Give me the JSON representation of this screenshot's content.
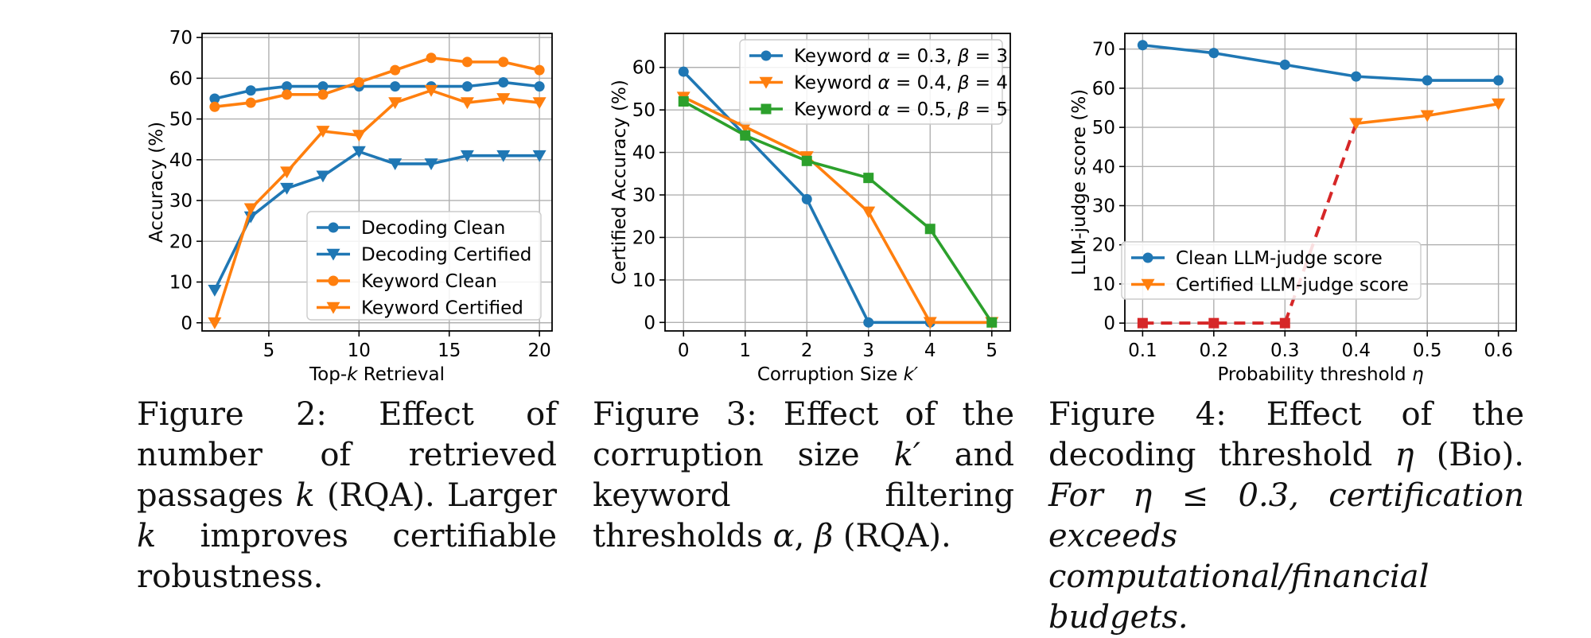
{
  "colors": {
    "blue": "#1f77b4",
    "orange": "#ff7f0e",
    "green": "#2ca02c",
    "red": "#d62728",
    "grid": "#b0b0b0"
  },
  "captions": [
    {
      "figure_label": "Figure 2:",
      "text": "Effect of number of retrieved passages k (RQA). Larger k improves certifiable robustness.",
      "italic_text": ""
    },
    {
      "figure_label": "Figure 3:",
      "text": "Effect of the corruption size k′ and keyword filtering thresholds α, β (RQA).",
      "italic_text": ""
    },
    {
      "figure_label": "Figure 4:",
      "text": "Effect of the decoding threshold η (Bio).",
      "italic_text": "For η ≤ 0.3, certification exceeds computational/financial budgets."
    }
  ],
  "chart_data": [
    {
      "type": "line",
      "xlabel": "Top-k Retrieval",
      "ylabel": "Accuracy (%)",
      "xlim": [
        1.3,
        20.7
      ],
      "ylim": [
        -2,
        71
      ],
      "xticks": [
        5,
        10,
        15,
        20
      ],
      "yticks": [
        0,
        10,
        20,
        30,
        40,
        50,
        60,
        70
      ],
      "grid": true,
      "legend_position": "lower-right",
      "x": [
        2,
        4,
        6,
        8,
        10,
        12,
        14,
        16,
        18,
        20
      ],
      "series": [
        {
          "name": "Decoding Clean",
          "color": "#1f77b4",
          "marker": "circle",
          "values": [
            55,
            57,
            58,
            58,
            58,
            58,
            58,
            58,
            59,
            58
          ]
        },
        {
          "name": "Decoding Certified",
          "color": "#1f77b4",
          "marker": "triangle-down",
          "values": [
            8,
            26,
            33,
            36,
            42,
            39,
            39,
            41,
            41,
            41
          ]
        },
        {
          "name": "Keyword Clean",
          "color": "#ff7f0e",
          "marker": "circle",
          "values": [
            53,
            54,
            56,
            56,
            59,
            62,
            65,
            64,
            64,
            62
          ]
        },
        {
          "name": "Keyword Certified",
          "color": "#ff7f0e",
          "marker": "triangle-down",
          "values": [
            0,
            28,
            37,
            47,
            46,
            54,
            57,
            54,
            55,
            54
          ]
        }
      ]
    },
    {
      "type": "line",
      "xlabel": "Corruption Size k′",
      "ylabel": "Certified Accuracy (%)",
      "xlim": [
        -0.3,
        5.3
      ],
      "ylim": [
        -2,
        68
      ],
      "xticks": [
        0,
        1,
        2,
        3,
        4,
        5
      ],
      "yticks": [
        0,
        10,
        20,
        30,
        40,
        50,
        60
      ],
      "grid": true,
      "legend_position": "upper-right",
      "x": [
        0,
        1,
        2,
        3,
        4,
        5
      ],
      "series": [
        {
          "name": "Keyword α = 0.3, β = 3",
          "color": "#1f77b4",
          "marker": "circle",
          "values": [
            59,
            44,
            29,
            0,
            0,
            0
          ]
        },
        {
          "name": "Keyword α = 0.4, β = 4",
          "color": "#ff7f0e",
          "marker": "triangle-down",
          "values": [
            53,
            46,
            39,
            26,
            0,
            0
          ]
        },
        {
          "name": "Keyword α = 0.5, β = 5",
          "color": "#2ca02c",
          "marker": "square",
          "values": [
            52,
            44,
            38,
            34,
            22,
            0
          ]
        }
      ]
    },
    {
      "type": "line",
      "xlabel": "Probability threshold η",
      "ylabel": "LLM-judge score (%)",
      "xlim": [
        0.075,
        0.625
      ],
      "ylim": [
        -2,
        74
      ],
      "xticks": [
        0.1,
        0.2,
        0.3,
        0.4,
        0.5,
        0.6
      ],
      "yticks": [
        0,
        10,
        20,
        30,
        40,
        50,
        60,
        70
      ],
      "grid": true,
      "legend_position": "lower-left",
      "x": [
        0.1,
        0.2,
        0.3,
        0.4,
        0.5,
        0.6
      ],
      "series": [
        {
          "name": "Clean LLM-judge score",
          "color": "#1f77b4",
          "marker": "circle",
          "values": [
            71,
            69,
            66,
            63,
            62,
            62
          ]
        },
        {
          "name": "Certified LLM-judge score",
          "color": "#ff7f0e",
          "marker": "triangle-down",
          "values": [
            null,
            null,
            null,
            51,
            53,
            56
          ]
        }
      ],
      "annotations": [
        {
          "kind": "dashed-segment",
          "color": "#d62728",
          "marker": "square",
          "points": [
            [
              0.1,
              0
            ],
            [
              0.2,
              0
            ],
            [
              0.3,
              0
            ]
          ]
        },
        {
          "kind": "dashed-segment",
          "color": "#d62728",
          "marker": "none",
          "points": [
            [
              0.3,
              0
            ],
            [
              0.4,
              51
            ]
          ]
        }
      ]
    }
  ]
}
